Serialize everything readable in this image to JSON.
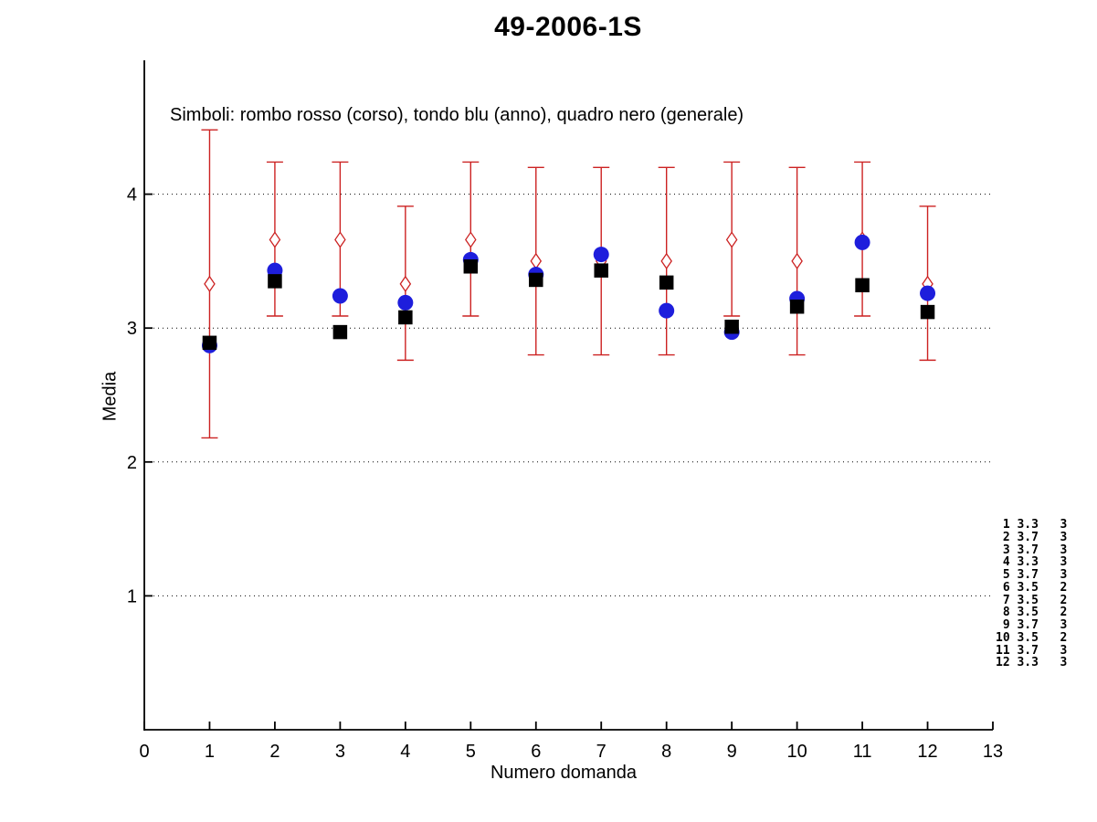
{
  "page": {
    "background": "#ffffff"
  },
  "chart_data": {
    "type": "scatter",
    "title": "49-2006-1S",
    "legend_text": "Simboli: rombo rosso (corso), tondo blu (anno), quadro nero (generale)",
    "xlabel": "Numero domanda",
    "ylabel": "Media",
    "xlim": [
      0,
      13
    ],
    "ylim": [
      0,
      5
    ],
    "x_ticks": [
      0,
      1,
      2,
      3,
      4,
      5,
      6,
      7,
      8,
      9,
      10,
      11,
      12,
      13
    ],
    "y_ticks": [
      1,
      2,
      3,
      4
    ],
    "grid": "horizontal dotted black lines at each y tick",
    "legend_position": "text line inside plot, top left",
    "colors": {
      "corso": "#cc2222",
      "anno": "#1e1edc",
      "generale": "#000000"
    },
    "x": [
      1,
      2,
      3,
      4,
      5,
      6,
      7,
      8,
      9,
      10,
      11,
      12
    ],
    "series": [
      {
        "name": "corso",
        "marker": "open-diamond-red-with-errorbars",
        "values": [
          3.33,
          3.66,
          3.66,
          3.33,
          3.66,
          3.5,
          3.5,
          3.5,
          3.66,
          3.5,
          3.66,
          3.33
        ],
        "err_low": [
          2.18,
          3.09,
          3.09,
          2.76,
          3.09,
          2.8,
          2.8,
          2.8,
          3.09,
          2.8,
          3.09,
          2.76
        ],
        "err_high": [
          4.48,
          4.24,
          4.24,
          3.91,
          4.24,
          4.2,
          4.2,
          4.2,
          4.24,
          4.2,
          4.24,
          3.91
        ]
      },
      {
        "name": "anno",
        "marker": "filled-circle-blue",
        "values": [
          2.87,
          3.43,
          3.24,
          3.19,
          3.51,
          3.4,
          3.55,
          3.13,
          2.97,
          3.22,
          3.64,
          3.26
        ]
      },
      {
        "name": "generale",
        "marker": "filled-square-black",
        "values": [
          2.89,
          3.35,
          2.97,
          3.08,
          3.46,
          3.36,
          3.43,
          3.34,
          3.01,
          3.16,
          3.32,
          3.12
        ]
      }
    ]
  },
  "stats_table": {
    "rows": [
      {
        "q": "1",
        "media": "3.3",
        "n": "3"
      },
      {
        "q": "2",
        "media": "3.7",
        "n": "3"
      },
      {
        "q": "3",
        "media": "3.7",
        "n": "3"
      },
      {
        "q": "4",
        "media": "3.3",
        "n": "3"
      },
      {
        "q": "5",
        "media": "3.7",
        "n": "3"
      },
      {
        "q": "6",
        "media": "3.5",
        "n": "2"
      },
      {
        "q": "7",
        "media": "3.5",
        "n": "2"
      },
      {
        "q": "8",
        "media": "3.5",
        "n": "2"
      },
      {
        "q": "9",
        "media": "3.7",
        "n": "3"
      },
      {
        "q": "10",
        "media": "3.5",
        "n": "2"
      },
      {
        "q": "11",
        "media": "3.7",
        "n": "3"
      },
      {
        "q": "12",
        "media": "3.3",
        "n": "3"
      }
    ]
  }
}
